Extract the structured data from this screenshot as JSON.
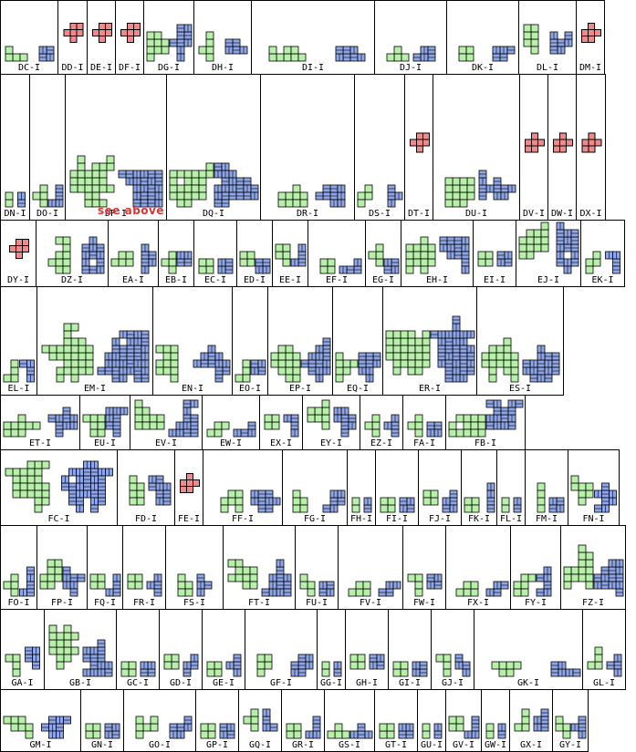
{
  "colors": {
    "green": "#b7f0a8",
    "blue": "#8ea6e8",
    "red": "#f08a8a",
    "border": "#000000",
    "note": "#e03030"
  },
  "note": {
    "text": "see  above"
  },
  "rows": [
    {
      "top": 0,
      "height": 82,
      "cells": [
        {
          "label": "DC-I",
          "w": 64,
          "kind": "pair"
        },
        {
          "label": "DD-I",
          "w": 33,
          "kind": "red"
        },
        {
          "label": "DE-I",
          "w": 32,
          "kind": "red"
        },
        {
          "label": "DF-I",
          "w": 32,
          "kind": "red"
        },
        {
          "label": "DG-I",
          "w": 56,
          "kind": "pair"
        },
        {
          "label": "DH-I",
          "w": 64,
          "kind": "pair"
        },
        {
          "label": "DI-I",
          "w": 136,
          "kind": "pair"
        },
        {
          "label": "DJ-I",
          "w": 80,
          "kind": "pair"
        },
        {
          "label": "DK-I",
          "w": 80,
          "kind": "pair"
        },
        {
          "label": "DL-I",
          "w": 64,
          "kind": "pair"
        },
        {
          "label": "DM-I",
          "w": 32,
          "kind": "red"
        }
      ]
    },
    {
      "top": 81,
      "height": 161,
      "cells": [
        {
          "label": "DN-I",
          "w": 33,
          "kind": "pair"
        },
        {
          "label": "DO-I",
          "w": 40,
          "kind": "pair"
        },
        {
          "label": "DP-I",
          "w": 112,
          "kind": "pair"
        },
        {
          "label": "DQ-I",
          "w": 104,
          "kind": "pair"
        },
        {
          "label": "DR-I",
          "w": 104,
          "kind": "pair"
        },
        {
          "label": "DS-I",
          "w": 56,
          "kind": "pair"
        },
        {
          "label": "DT-I",
          "w": 32,
          "kind": "red"
        },
        {
          "label": "DU-I",
          "w": 96,
          "kind": "pair"
        },
        {
          "label": "DV-I",
          "w": 32,
          "kind": "red"
        },
        {
          "label": "DW-I",
          "w": 32,
          "kind": "red"
        },
        {
          "label": "DX-I",
          "w": 33,
          "kind": "red"
        }
      ]
    },
    {
      "top": 241,
      "height": 74,
      "cells": [
        {
          "label": "DY-I",
          "w": 40,
          "kind": "red"
        },
        {
          "label": "DZ-I",
          "w": 80,
          "kind": "pair"
        },
        {
          "label": "EA-I",
          "w": 56,
          "kind": "pair"
        },
        {
          "label": "EB-I",
          "w": 40,
          "kind": "pair"
        },
        {
          "label": "EC-I",
          "w": 48,
          "kind": "pair"
        },
        {
          "label": "ED-I",
          "w": 40,
          "kind": "pair"
        },
        {
          "label": "EE-I",
          "w": 40,
          "kind": "pair"
        },
        {
          "label": "EF-I",
          "w": 64,
          "kind": "pair"
        },
        {
          "label": "EG-I",
          "w": 40,
          "kind": "pair"
        },
        {
          "label": "EH-I",
          "w": 80,
          "kind": "pair"
        },
        {
          "label": "EI-I",
          "w": 48,
          "kind": "pair"
        },
        {
          "label": "EJ-I",
          "w": 72,
          "kind": "pair"
        },
        {
          "label": "EK-I",
          "w": 49,
          "kind": "pair"
        }
      ]
    },
    {
      "top": 314,
      "height": 120,
      "cells": [
        {
          "label": "EL-I",
          "w": 41,
          "kind": "pair"
        },
        {
          "label": "EM-I",
          "w": 128,
          "kind": "pair"
        },
        {
          "label": "EN-I",
          "w": 88,
          "kind": "pair"
        },
        {
          "label": "EO-I",
          "w": 40,
          "kind": "pair"
        },
        {
          "label": "EP-I",
          "w": 72,
          "kind": "pair"
        },
        {
          "label": "EQ-I",
          "w": 56,
          "kind": "pair"
        },
        {
          "label": "ER-I",
          "w": 104,
          "kind": "pair"
        },
        {
          "label": "ES-I",
          "w": 96,
          "kind": "pair"
        }
      ]
    },
    {
      "top": 433,
      "height": 61,
      "cells": [
        {
          "label": "ET-I",
          "w": 88,
          "kind": "pair"
        },
        {
          "label": "EU-I",
          "w": 56,
          "kind": "pair"
        },
        {
          "label": "EV-I",
          "w": 80,
          "kind": "pair"
        },
        {
          "label": "EW-I",
          "w": 64,
          "kind": "pair"
        },
        {
          "label": "EX-I",
          "w": 48,
          "kind": "pair"
        },
        {
          "label": "EY-I",
          "w": 64,
          "kind": "pair"
        },
        {
          "label": "EZ-I",
          "w": 48,
          "kind": "pair"
        },
        {
          "label": "FA-I",
          "w": 48,
          "kind": "pair"
        },
        {
          "label": "FB-I",
          "w": 88,
          "kind": "pair"
        }
      ]
    },
    {
      "top": 493,
      "height": 84,
      "cells": [
        {
          "label": "FC-I",
          "w": 129,
          "kind": "pair"
        },
        {
          "label": "FD-I",
          "w": 64,
          "kind": "pair"
        },
        {
          "label": "FE-I",
          "w": 32,
          "kind": "red"
        },
        {
          "label": "FF-I",
          "w": 88,
          "kind": "pair"
        },
        {
          "label": "FG-I",
          "w": 72,
          "kind": "pair"
        },
        {
          "label": "FH-I",
          "w": 32,
          "kind": "pair"
        },
        {
          "label": "FI-I",
          "w": 48,
          "kind": "pair"
        },
        {
          "label": "FJ-I",
          "w": 48,
          "kind": "pair"
        },
        {
          "label": "FK-I",
          "w": 40,
          "kind": "pair"
        },
        {
          "label": "FL-I",
          "w": 32,
          "kind": "pair"
        },
        {
          "label": "FM-I",
          "w": 48,
          "kind": "pair"
        },
        {
          "label": "FN-I",
          "w": 57,
          "kind": "pair"
        }
      ]
    },
    {
      "top": 576,
      "height": 93,
      "cells": [
        {
          "label": "FO-I",
          "w": 41,
          "kind": "pair"
        },
        {
          "label": "FP-I",
          "w": 56,
          "kind": "pair"
        },
        {
          "label": "FQ-I",
          "w": 40,
          "kind": "pair"
        },
        {
          "label": "FR-I",
          "w": 48,
          "kind": "pair"
        },
        {
          "label": "FS-I",
          "w": 64,
          "kind": "pair"
        },
        {
          "label": "FT-I",
          "w": 80,
          "kind": "pair"
        },
        {
          "label": "FU-I",
          "w": 48,
          "kind": "pair"
        },
        {
          "label": "FV-I",
          "w": 72,
          "kind": "pair"
        },
        {
          "label": "FW-I",
          "w": 48,
          "kind": "pair"
        },
        {
          "label": "FX-I",
          "w": 72,
          "kind": "pair"
        },
        {
          "label": "FY-I",
          "w": 56,
          "kind": "pair"
        },
        {
          "label": "FZ-I",
          "w": 72,
          "kind": "pair"
        }
      ]
    },
    {
      "top": 668,
      "height": 89,
      "cells": [
        {
          "label": "GA-I",
          "w": 49,
          "kind": "pair"
        },
        {
          "label": "GB-I",
          "w": 80,
          "kind": "pair"
        },
        {
          "label": "GC-I",
          "w": 48,
          "kind": "pair"
        },
        {
          "label": "GD-I",
          "w": 48,
          "kind": "pair"
        },
        {
          "label": "GE-I",
          "w": 48,
          "kind": "pair"
        },
        {
          "label": "GF-I",
          "w": 80,
          "kind": "pair"
        },
        {
          "label": "GG-I",
          "w": 32,
          "kind": "pair"
        },
        {
          "label": "GH-I",
          "w": 48,
          "kind": "pair"
        },
        {
          "label": "GI-I",
          "w": 48,
          "kind": "pair"
        },
        {
          "label": "GJ-I",
          "w": 48,
          "kind": "pair"
        },
        {
          "label": "GK-I",
          "w": 120,
          "kind": "pair"
        },
        {
          "label": "GL-I",
          "w": 48,
          "kind": "pair"
        }
      ]
    },
    {
      "top": 756,
      "height": 69,
      "cells": [
        {
          "label": "GM-I",
          "w": 89,
          "kind": "pair"
        },
        {
          "label": "GN-I",
          "w": 48,
          "kind": "pair"
        },
        {
          "label": "GO-I",
          "w": 80,
          "kind": "pair"
        },
        {
          "label": "GP-I",
          "w": 48,
          "kind": "pair"
        },
        {
          "label": "GQ-I",
          "w": 48,
          "kind": "pair"
        },
        {
          "label": "GR-I",
          "w": 48,
          "kind": "pair"
        },
        {
          "label": "GS-I",
          "w": 56,
          "kind": "pair"
        },
        {
          "label": "GT-I",
          "w": 48,
          "kind": "pair"
        },
        {
          "label": "GU-I",
          "w": 32,
          "kind": "pair"
        },
        {
          "label": "GV-I",
          "w": 40,
          "kind": "pair"
        },
        {
          "label": "GW-I",
          "w": 32,
          "kind": "pair"
        },
        {
          "label": "GX-I",
          "w": 48,
          "kind": "pair"
        },
        {
          "label": "GY-I",
          "w": 40,
          "kind": "pair"
        }
      ]
    }
  ]
}
